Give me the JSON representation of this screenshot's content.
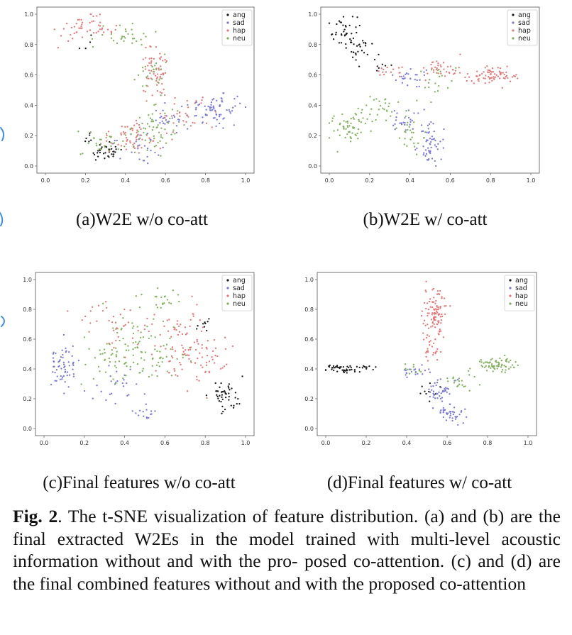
{
  "chart_data": [
    {
      "type": "scatter",
      "id": "a",
      "subtitle": "(a)W2E w/o co-att",
      "xlim": [
        0.0,
        1.0
      ],
      "ylim": [
        0.0,
        1.0
      ],
      "xticks": [
        "0.0",
        "0.2",
        "0.4",
        "0.6",
        "0.8",
        "1.0"
      ],
      "yticks": [
        "0.0",
        "0.2",
        "0.4",
        "0.6",
        "0.8",
        "1.0"
      ],
      "legend_position": "top-right",
      "series": [
        {
          "name": "ang",
          "color": "#1a1a1a",
          "clusters": [
            [
              0.3,
              0.09,
              0.06,
              0.04,
              35
            ],
            [
              0.22,
              0.18,
              0.04,
              0.03,
              6
            ],
            [
              0.2,
              0.8,
              0.05,
              0.05,
              4
            ]
          ]
        },
        {
          "name": "sad",
          "color": "#7777dd",
          "clusters": [
            [
              0.85,
              0.38,
              0.1,
              0.07,
              70
            ],
            [
              0.62,
              0.3,
              0.06,
              0.06,
              25
            ],
            [
              0.45,
              0.15,
              0.1,
              0.06,
              25
            ]
          ]
        },
        {
          "name": "hap",
          "color": "#e87575",
          "clusters": [
            [
              0.2,
              0.9,
              0.1,
              0.06,
              50
            ],
            [
              0.55,
              0.6,
              0.05,
              0.12,
              60
            ],
            [
              0.45,
              0.2,
              0.12,
              0.08,
              55
            ],
            [
              0.7,
              0.35,
              0.1,
              0.07,
              30
            ]
          ]
        },
        {
          "name": "neu",
          "color": "#7fb05a",
          "clusters": [
            [
              0.4,
              0.85,
              0.1,
              0.07,
              30
            ],
            [
              0.55,
              0.25,
              0.08,
              0.1,
              55
            ],
            [
              0.3,
              0.15,
              0.1,
              0.06,
              30
            ],
            [
              0.52,
              0.62,
              0.05,
              0.1,
              25
            ]
          ]
        }
      ]
    },
    {
      "type": "scatter",
      "id": "b",
      "subtitle": "(b)W2E w/ co-att",
      "xlim": [
        0.0,
        1.0
      ],
      "ylim": [
        0.0,
        1.0
      ],
      "xticks": [
        "0.0",
        "0.2",
        "0.4",
        "0.6",
        "0.8",
        "1.0"
      ],
      "yticks": [
        "0.0",
        "0.2",
        "0.4",
        "0.6",
        "0.8",
        "1.0"
      ],
      "legend_position": "top-right",
      "series": [
        {
          "name": "ang",
          "color": "#1a1a1a",
          "clusters": [
            [
              0.07,
              0.9,
              0.05,
              0.07,
              35
            ],
            [
              0.15,
              0.78,
              0.04,
              0.05,
              25
            ],
            [
              0.25,
              0.67,
              0.05,
              0.04,
              10
            ]
          ]
        },
        {
          "name": "sad",
          "color": "#7777dd",
          "clusters": [
            [
              0.5,
              0.15,
              0.04,
              0.1,
              55
            ],
            [
              0.38,
              0.3,
              0.06,
              0.05,
              25
            ],
            [
              0.4,
              0.58,
              0.06,
              0.05,
              25
            ]
          ]
        },
        {
          "name": "hap",
          "color": "#e87575",
          "clusters": [
            [
              0.8,
              0.6,
              0.1,
              0.04,
              75
            ],
            [
              0.55,
              0.65,
              0.07,
              0.05,
              35
            ],
            [
              0.3,
              0.63,
              0.05,
              0.04,
              15
            ]
          ]
        },
        {
          "name": "neu",
          "color": "#7fb05a",
          "clusters": [
            [
              0.1,
              0.25,
              0.07,
              0.08,
              55
            ],
            [
              0.25,
              0.38,
              0.06,
              0.07,
              30
            ],
            [
              0.4,
              0.2,
              0.05,
              0.07,
              25
            ],
            [
              0.55,
              0.55,
              0.08,
              0.08,
              20
            ]
          ]
        }
      ]
    },
    {
      "type": "scatter",
      "id": "c",
      "subtitle": "(c)Final features w/o co-att",
      "xlim": [
        0.0,
        1.0
      ],
      "ylim": [
        0.0,
        1.0
      ],
      "xticks": [
        "0.0",
        "0.2",
        "0.4",
        "0.6",
        "0.8",
        "1.0"
      ],
      "yticks": [
        "0.0",
        "0.2",
        "0.4",
        "0.6",
        "0.8",
        "1.0"
      ],
      "legend_position": "top-right",
      "series": [
        {
          "name": "ang",
          "color": "#1a1a1a",
          "clusters": [
            [
              0.9,
              0.22,
              0.05,
              0.08,
              45
            ],
            [
              0.8,
              0.7,
              0.04,
              0.05,
              10
            ]
          ]
        },
        {
          "name": "sad",
          "color": "#7777dd",
          "clusters": [
            [
              0.1,
              0.42,
              0.06,
              0.1,
              60
            ],
            [
              0.5,
              0.1,
              0.04,
              0.04,
              15
            ],
            [
              0.35,
              0.3,
              0.1,
              0.1,
              25
            ]
          ]
        },
        {
          "name": "hap",
          "color": "#e87575",
          "clusters": [
            [
              0.7,
              0.55,
              0.12,
              0.18,
              90
            ],
            [
              0.35,
              0.7,
              0.12,
              0.15,
              40
            ],
            [
              0.85,
              0.45,
              0.06,
              0.12,
              20
            ]
          ]
        },
        {
          "name": "neu",
          "color": "#7fb05a",
          "clusters": [
            [
              0.5,
              0.5,
              0.15,
              0.18,
              90
            ],
            [
              0.3,
              0.45,
              0.1,
              0.12,
              30
            ],
            [
              0.58,
              0.85,
              0.06,
              0.07,
              20
            ]
          ]
        }
      ]
    },
    {
      "type": "scatter",
      "id": "d",
      "subtitle": "(d)Final features w/ co-att",
      "xlim": [
        0.0,
        1.0
      ],
      "ylim": [
        0.0,
        1.0
      ],
      "xticks": [
        "0.0",
        "0.2",
        "0.4",
        "0.6",
        "0.8",
        "1.0"
      ],
      "yticks": [
        "0.0",
        "0.2",
        "0.4",
        "0.6",
        "0.8",
        "1.0"
      ],
      "legend_position": "top-right",
      "series": [
        {
          "name": "ang",
          "color": "#1a1a1a",
          "clusters": [
            [
              0.08,
              0.4,
              0.06,
              0.02,
              45
            ],
            [
              0.2,
              0.41,
              0.04,
              0.02,
              10
            ],
            [
              0.52,
              0.25,
              0.04,
              0.04,
              10
            ]
          ]
        },
        {
          "name": "sad",
          "color": "#7777dd",
          "clusters": [
            [
              0.62,
              0.1,
              0.04,
              0.06,
              40
            ],
            [
              0.55,
              0.25,
              0.05,
              0.06,
              40
            ],
            [
              0.45,
              0.38,
              0.05,
              0.03,
              20
            ]
          ]
        },
        {
          "name": "hap",
          "color": "#e87575",
          "clusters": [
            [
              0.54,
              0.78,
              0.04,
              0.12,
              100
            ],
            [
              0.52,
              0.55,
              0.03,
              0.06,
              25
            ]
          ]
        },
        {
          "name": "neu",
          "color": "#7fb05a",
          "clusters": [
            [
              0.84,
              0.43,
              0.07,
              0.03,
              70
            ],
            [
              0.68,
              0.32,
              0.05,
              0.05,
              20
            ],
            [
              0.42,
              0.4,
              0.04,
              0.03,
              10
            ]
          ]
        }
      ]
    }
  ],
  "caption": {
    "label": "Fig. 2",
    "text": ".  The t-SNE visualization of feature distribution.  (a) and (b) are the final extracted W2Es in the model trained with multi-level acoustic information without and with the pro- posed co-attention. (c) and (d) are the final combined features without and with the proposed co-attention"
  },
  "margin_marks": {
    "color": "#3c8ef0"
  }
}
